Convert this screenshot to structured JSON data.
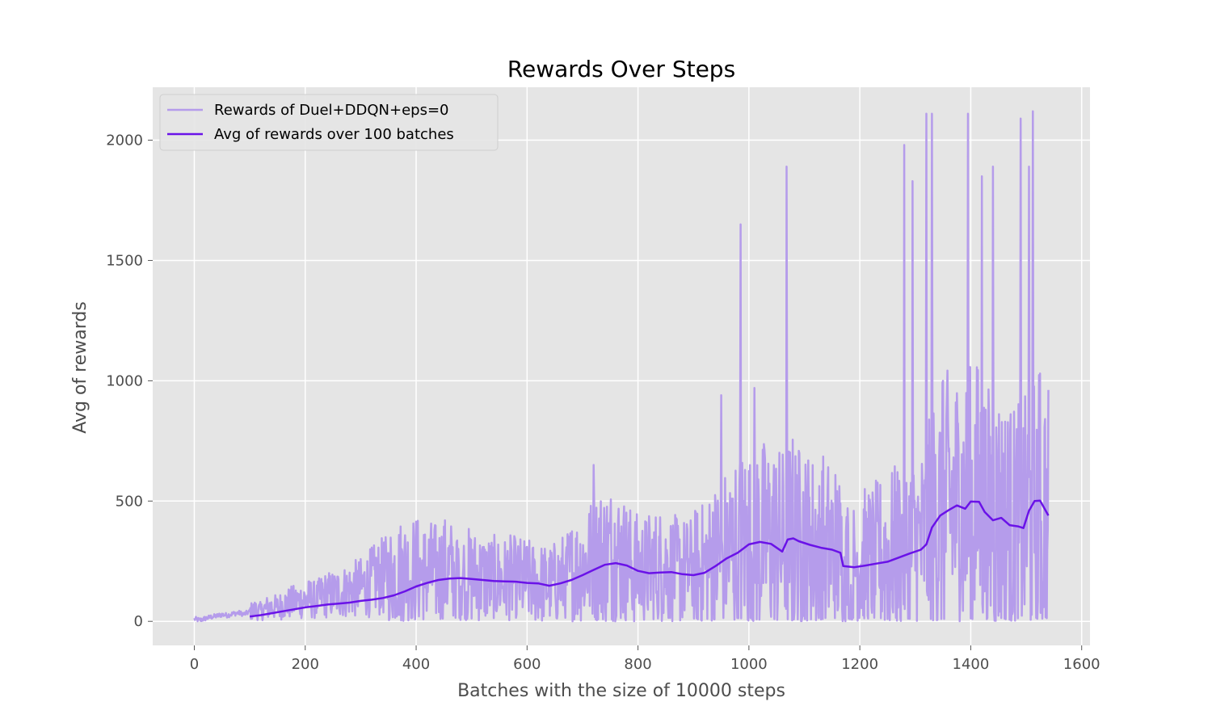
{
  "chart_data": {
    "type": "line",
    "title": "Rewards Over Steps",
    "xlabel": "Batches with the size of 10000 steps",
    "ylabel": "Avg of rewards",
    "xlim": [
      -75,
      1615
    ],
    "ylim": [
      -100,
      2220
    ],
    "xticks": [
      0,
      200,
      400,
      600,
      800,
      1000,
      1200,
      1400,
      1600
    ],
    "yticks": [
      0,
      500,
      1000,
      1500,
      2000
    ],
    "grid": true,
    "legend_position": "upper-left",
    "series": [
      {
        "name": "Rewards of Duel+DDQN+eps=0",
        "color": "#b59ceb",
        "style": "raw-noisy",
        "points": [
          [
            0,
            10
          ],
          [
            10,
            5
          ],
          [
            20,
            12
          ],
          [
            30,
            18
          ],
          [
            40,
            22
          ],
          [
            50,
            28
          ],
          [
            60,
            25
          ],
          [
            70,
            32
          ],
          [
            80,
            35
          ],
          [
            90,
            30
          ],
          [
            100,
            40
          ],
          [
            110,
            48
          ],
          [
            120,
            42
          ],
          [
            130,
            55
          ],
          [
            140,
            60
          ],
          [
            150,
            58
          ],
          [
            160,
            70
          ],
          [
            170,
            75
          ],
          [
            180,
            80
          ],
          [
            190,
            85
          ],
          [
            200,
            90
          ],
          [
            210,
            95
          ],
          [
            220,
            85
          ],
          [
            230,
            105
          ],
          [
            240,
            110
          ],
          [
            250,
            112
          ],
          [
            260,
            118
          ],
          [
            270,
            122
          ],
          [
            280,
            130
          ],
          [
            290,
            135
          ],
          [
            300,
            140
          ],
          [
            310,
            150
          ],
          [
            320,
            165
          ],
          [
            330,
            175
          ],
          [
            340,
            185
          ],
          [
            350,
            190
          ],
          [
            360,
            200
          ],
          [
            370,
            205
          ],
          [
            380,
            210
          ],
          [
            390,
            200
          ],
          [
            400,
            215
          ],
          [
            410,
            190
          ],
          [
            420,
            205
          ],
          [
            430,
            200
          ],
          [
            440,
            195
          ],
          [
            450,
            210
          ],
          [
            460,
            205
          ],
          [
            470,
            200
          ],
          [
            480,
            195
          ],
          [
            490,
            190
          ],
          [
            500,
            185
          ],
          [
            510,
            180
          ],
          [
            520,
            178
          ],
          [
            530,
            175
          ],
          [
            540,
            172
          ],
          [
            550,
            170
          ],
          [
            560,
            168
          ],
          [
            570,
            172
          ],
          [
            580,
            170
          ],
          [
            590,
            168
          ],
          [
            600,
            165
          ],
          [
            610,
            160
          ],
          [
            620,
            158
          ],
          [
            630,
            155
          ],
          [
            640,
            150
          ],
          [
            650,
            160
          ],
          [
            660,
            170
          ],
          [
            670,
            185
          ],
          [
            680,
            200
          ],
          [
            690,
            210
          ],
          [
            700,
            225
          ],
          [
            710,
            240
          ],
          [
            720,
            250
          ],
          [
            730,
            265
          ],
          [
            740,
            270
          ],
          [
            750,
            275
          ],
          [
            760,
            268
          ],
          [
            770,
            260
          ],
          [
            780,
            240
          ],
          [
            790,
            225
          ],
          [
            800,
            215
          ],
          [
            810,
            210
          ],
          [
            820,
            218
          ],
          [
            830,
            222
          ],
          [
            840,
            225
          ],
          [
            850,
            220
          ],
          [
            860,
            215
          ],
          [
            870,
            210
          ],
          [
            880,
            208
          ],
          [
            890,
            205
          ],
          [
            900,
            210
          ],
          [
            910,
            215
          ],
          [
            920,
            225
          ],
          [
            930,
            240
          ],
          [
            940,
            260
          ],
          [
            950,
            275
          ],
          [
            960,
            285
          ],
          [
            970,
            300
          ],
          [
            980,
            320
          ],
          [
            990,
            330
          ],
          [
            1000,
            340
          ],
          [
            1010,
            345
          ],
          [
            1020,
            342
          ],
          [
            1030,
            338
          ],
          [
            1040,
            335
          ],
          [
            1050,
            330
          ],
          [
            1060,
            320
          ],
          [
            1070,
            345
          ],
          [
            1080,
            350
          ],
          [
            1090,
            330
          ],
          [
            1100,
            320
          ],
          [
            1110,
            315
          ],
          [
            1120,
            318
          ],
          [
            1130,
            322
          ],
          [
            1140,
            305
          ],
          [
            1150,
            300
          ],
          [
            1160,
            295
          ],
          [
            1170,
            240
          ],
          [
            1180,
            235
          ],
          [
            1190,
            240
          ],
          [
            1200,
            245
          ],
          [
            1210,
            250
          ],
          [
            1220,
            255
          ],
          [
            1230,
            262
          ],
          [
            1240,
            270
          ],
          [
            1250,
            280
          ],
          [
            1260,
            288
          ],
          [
            1270,
            295
          ],
          [
            1280,
            300
          ],
          [
            1290,
            305
          ],
          [
            1300,
            310
          ],
          [
            1310,
            318
          ],
          [
            1320,
            350
          ],
          [
            1330,
            400
          ],
          [
            1340,
            430
          ],
          [
            1350,
            450
          ],
          [
            1360,
            470
          ],
          [
            1370,
            480
          ],
          [
            1380,
            470
          ],
          [
            1390,
            460
          ],
          [
            1400,
            480
          ],
          [
            1410,
            495
          ],
          [
            1420,
            480
          ],
          [
            1430,
            440
          ],
          [
            1440,
            430
          ],
          [
            1450,
            440
          ],
          [
            1460,
            420
          ],
          [
            1470,
            410
          ],
          [
            1480,
            400
          ],
          [
            1490,
            410
          ],
          [
            1500,
            420
          ],
          [
            1510,
            450
          ],
          [
            1520,
            470
          ],
          [
            1530,
            480
          ],
          [
            1540,
            445
          ]
        ]
      },
      {
        "name": "Avg of rewards over 100 batches",
        "color": "#6a12e8",
        "points": [
          [
            100,
            20
          ],
          [
            120,
            26
          ],
          [
            140,
            34
          ],
          [
            160,
            42
          ],
          [
            180,
            50
          ],
          [
            200,
            58
          ],
          [
            220,
            64
          ],
          [
            240,
            70
          ],
          [
            260,
            74
          ],
          [
            280,
            78
          ],
          [
            300,
            85
          ],
          [
            320,
            90
          ],
          [
            340,
            97
          ],
          [
            360,
            108
          ],
          [
            380,
            125
          ],
          [
            400,
            145
          ],
          [
            420,
            160
          ],
          [
            440,
            172
          ],
          [
            460,
            178
          ],
          [
            480,
            180
          ],
          [
            500,
            176
          ],
          [
            520,
            172
          ],
          [
            540,
            168
          ],
          [
            560,
            166
          ],
          [
            580,
            165
          ],
          [
            600,
            160
          ],
          [
            620,
            158
          ],
          [
            640,
            148
          ],
          [
            660,
            158
          ],
          [
            680,
            172
          ],
          [
            700,
            192
          ],
          [
            720,
            214
          ],
          [
            740,
            235
          ],
          [
            760,
            242
          ],
          [
            780,
            232
          ],
          [
            800,
            210
          ],
          [
            820,
            200
          ],
          [
            840,
            203
          ],
          [
            860,
            205
          ],
          [
            880,
            196
          ],
          [
            900,
            192
          ],
          [
            920,
            202
          ],
          [
            940,
            230
          ],
          [
            960,
            262
          ],
          [
            980,
            285
          ],
          [
            1000,
            320
          ],
          [
            1020,
            330
          ],
          [
            1040,
            322
          ],
          [
            1060,
            290
          ],
          [
            1070,
            340
          ],
          [
            1080,
            345
          ],
          [
            1090,
            333
          ],
          [
            1110,
            318
          ],
          [
            1130,
            306
          ],
          [
            1150,
            298
          ],
          [
            1165,
            285
          ],
          [
            1170,
            230
          ],
          [
            1190,
            225
          ],
          [
            1210,
            232
          ],
          [
            1230,
            240
          ],
          [
            1250,
            248
          ],
          [
            1270,
            265
          ],
          [
            1290,
            282
          ],
          [
            1310,
            298
          ],
          [
            1320,
            320
          ],
          [
            1330,
            390
          ],
          [
            1345,
            440
          ],
          [
            1360,
            462
          ],
          [
            1375,
            482
          ],
          [
            1390,
            468
          ],
          [
            1400,
            498
          ],
          [
            1415,
            497
          ],
          [
            1425,
            455
          ],
          [
            1440,
            420
          ],
          [
            1455,
            430
          ],
          [
            1470,
            400
          ],
          [
            1485,
            395
          ],
          [
            1495,
            388
          ],
          [
            1505,
            460
          ],
          [
            1515,
            500
          ],
          [
            1525,
            502
          ],
          [
            1540,
            440
          ]
        ]
      }
    ]
  }
}
